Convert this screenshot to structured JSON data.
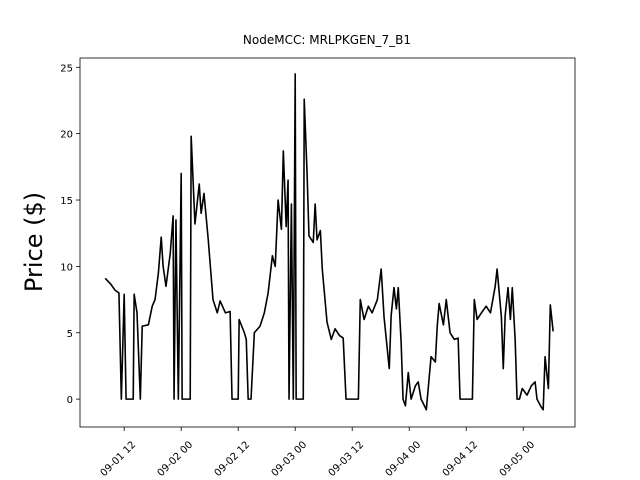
{
  "chart_data": {
    "type": "line",
    "title": "NodeMCC: MRLPKGEN_7_B1",
    "y_label": "Price ($)",
    "x": [
      8.0,
      9.1,
      10.1,
      10.9,
      11.4,
      12.0,
      12.4,
      13.9,
      14.1,
      14.7,
      15.4,
      15.8,
      17.1,
      17.9,
      18.5,
      19.2,
      19.8,
      20.2,
      20.8,
      21.7,
      22.3,
      22.5,
      22.9,
      23.4,
      24.0,
      24.2,
      25.9,
      26.1,
      26.9,
      27.8,
      28.2,
      28.8,
      29.7,
      30.7,
      31.6,
      32.2,
      33.3,
      34.3,
      34.7,
      36.0,
      36.2,
      37.3,
      37.7,
      38.1,
      38.7,
      39.4,
      40.6,
      41.5,
      42.3,
      43.2,
      43.8,
      44.4,
      45.1,
      45.5,
      46.1,
      46.5,
      46.7,
      47.2,
      47.6,
      48.0,
      48.2,
      49.7,
      49.9,
      50.5,
      50.9,
      51.8,
      52.2,
      52.6,
      53.3,
      53.7,
      54.7,
      55.6,
      56.4,
      57.3,
      58.1,
      58.7,
      61.3,
      61.7,
      62.5,
      63.4,
      64.2,
      65.3,
      66.1,
      66.7,
      67.8,
      68.2,
      68.8,
      69.3,
      69.7,
      70.3,
      70.7,
      71.2,
      71.8,
      72.4,
      73.3,
      73.9,
      74.5,
      75.2,
      75.6,
      76.6,
      77.5,
      77.9,
      78.3,
      79.2,
      79.8,
      80.6,
      81.5,
      82.3,
      82.7,
      85.3,
      85.7,
      86.3,
      87.2,
      88.2,
      89.1,
      90.1,
      90.5,
      91.4,
      91.8,
      92.2,
      92.8,
      93.3,
      93.7,
      94.3,
      94.7,
      95.2,
      95.8,
      96.8,
      97.7,
      98.5,
      98.9,
      99.8,
      100.2,
      100.6,
      101.3,
      101.7,
      102.3
    ],
    "series": [
      {
        "color": "#000000",
        "values": [
          9.1,
          8.7,
          8.2,
          8.0,
          0,
          7.9,
          0,
          0,
          7.9,
          6.5,
          0,
          5.5,
          5.6,
          7,
          7.5,
          9.5,
          12.2,
          10,
          8.5,
          11,
          13.8,
          0,
          13.5,
          0,
          17,
          0,
          0,
          19.8,
          13.2,
          16.2,
          14,
          15.5,
          12,
          7.5,
          6.5,
          7.4,
          6.5,
          6.6,
          0,
          0,
          6,
          5,
          4.5,
          0,
          0,
          5,
          5.5,
          6.5,
          8,
          10.8,
          10,
          15,
          12.8,
          18.7,
          13,
          16.5,
          0,
          14.7,
          0,
          24.5,
          0,
          0,
          22.6,
          17,
          12.3,
          11.8,
          14.7,
          12,
          12.7,
          9.8,
          5.8,
          4.5,
          5.3,
          4.8,
          4.6,
          0,
          0,
          7.5,
          6.0,
          7,
          6.5,
          7.5,
          9.8,
          6.2,
          2.3,
          6.3,
          8.4,
          6.8,
          8.4,
          4.3,
          0,
          -0.5,
          2,
          0,
          1,
          1.3,
          0,
          -0.5,
          -0.8,
          3.2,
          2.8,
          5.5,
          7.2,
          5.6,
          7.5,
          5,
          4.5,
          4.6,
          0,
          0,
          7.5,
          6,
          6.5,
          7,
          6.5,
          8.5,
          9.8,
          6.2,
          2.3,
          6.3,
          8.4,
          6,
          8.4,
          4.5,
          0,
          0,
          0.8,
          0.3,
          1,
          1.3,
          0,
          -0.6,
          -0.8,
          3.2,
          0.8,
          7.1,
          5.1
        ]
      }
    ],
    "xlim": [
      2.7,
      106.9
    ],
    "ylim": [
      -2.1,
      25.7
    ],
    "xticks": [
      {
        "value": 12,
        "label": "09-01 12"
      },
      {
        "value": 24,
        "label": "09-02 00"
      },
      {
        "value": 36,
        "label": "09-02 12"
      },
      {
        "value": 48,
        "label": "09-03 00"
      },
      {
        "value": 60,
        "label": "09-03 12"
      },
      {
        "value": 72,
        "label": "09-04 00"
      },
      {
        "value": 84,
        "label": "09-04 12"
      },
      {
        "value": 96,
        "label": "09-05 00"
      }
    ],
    "yticks": [
      0,
      5,
      10,
      15,
      20,
      25
    ]
  }
}
